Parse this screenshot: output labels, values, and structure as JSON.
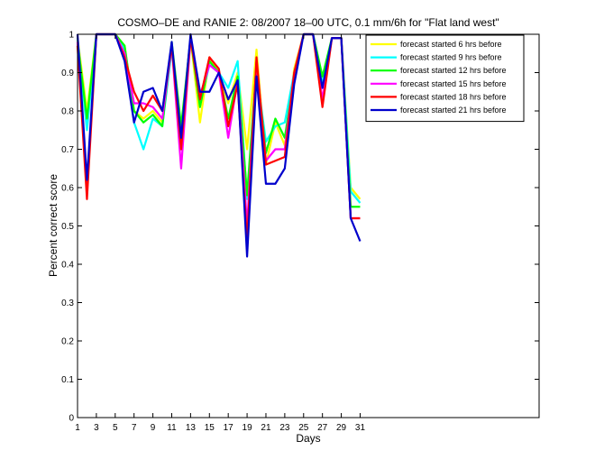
{
  "chart_data": {
    "type": "line",
    "title": "COSMO–DE and RANIE 2: 08/2007 18–00 UTC, 0.1 mm/6h for \"Flat land west\"",
    "xlabel": "Days",
    "ylabel": "Percent correct score",
    "xlim": [
      1,
      50
    ],
    "ylim": [
      0,
      1
    ],
    "xticks": [
      1,
      3,
      5,
      7,
      9,
      11,
      13,
      15,
      17,
      19,
      21,
      23,
      25,
      27,
      29,
      31
    ],
    "yticks": [
      0,
      0.1,
      0.2,
      0.3,
      0.4,
      0.5,
      0.6,
      0.7,
      0.8,
      0.9,
      1
    ],
    "ytick_labels": [
      "0",
      "0.1",
      "0.2",
      "0.3",
      "0.4",
      "0.5",
      "0.6",
      "0.7",
      "0.8",
      "0.9",
      "1"
    ],
    "legend_position": "top-right",
    "grid": false,
    "x": [
      1,
      2,
      3,
      4,
      5,
      6,
      7,
      8,
      9,
      10,
      11,
      12,
      13,
      14,
      15,
      16,
      17,
      18,
      19,
      20,
      21,
      22,
      23,
      24,
      25,
      26,
      27,
      28,
      29,
      30,
      31
    ],
    "series": [
      {
        "name": "forecast started 6 hrs before",
        "color": "#ffff00",
        "values": [
          0.99,
          0.8,
          1.0,
          1.0,
          1.0,
          0.97,
          0.8,
          0.78,
          0.8,
          0.77,
          0.97,
          0.75,
          0.99,
          0.77,
          0.94,
          0.9,
          0.82,
          0.9,
          0.7,
          0.96,
          0.66,
          0.77,
          0.71,
          0.91,
          1.0,
          1.0,
          0.88,
          0.99,
          0.99,
          0.6,
          0.57
        ]
      },
      {
        "name": "forecast started 9 hrs before",
        "color": "#00ffff",
        "values": [
          0.99,
          0.75,
          1.0,
          1.0,
          1.0,
          0.96,
          0.77,
          0.7,
          0.78,
          0.76,
          0.96,
          0.74,
          0.99,
          0.82,
          0.92,
          0.9,
          0.86,
          0.93,
          0.57,
          0.9,
          0.72,
          0.76,
          0.77,
          0.9,
          1.0,
          1.0,
          0.87,
          0.99,
          0.99,
          0.59,
          0.56
        ]
      },
      {
        "name": "forecast started 12 hrs before",
        "color": "#00ff00",
        "values": [
          0.98,
          0.78,
          1.0,
          1.0,
          1.0,
          0.97,
          0.8,
          0.77,
          0.79,
          0.76,
          0.98,
          0.76,
          0.99,
          0.81,
          0.93,
          0.9,
          0.78,
          0.89,
          0.58,
          0.92,
          0.69,
          0.78,
          0.73,
          0.89,
          1.0,
          1.0,
          0.89,
          0.99,
          0.99,
          0.55,
          0.55
        ]
      },
      {
        "name": "forecast started 15 hrs before",
        "color": "#ff00ff",
        "values": [
          0.98,
          0.6,
          1.0,
          1.0,
          1.0,
          0.95,
          0.82,
          0.82,
          0.81,
          0.78,
          0.97,
          0.65,
          0.99,
          0.84,
          0.92,
          0.9,
          0.73,
          0.88,
          0.5,
          0.93,
          0.67,
          0.7,
          0.7,
          0.9,
          1.0,
          1.0,
          0.83,
          0.99,
          0.99,
          0.52,
          0.52
        ]
      },
      {
        "name": "forecast started 18 hrs before",
        "color": "#ff0000",
        "values": [
          0.97,
          0.57,
          1.0,
          1.0,
          1.0,
          0.94,
          0.85,
          0.8,
          0.84,
          0.8,
          0.97,
          0.7,
          0.99,
          0.83,
          0.94,
          0.91,
          0.76,
          0.87,
          0.46,
          0.94,
          0.66,
          0.67,
          0.68,
          0.9,
          1.0,
          1.0,
          0.81,
          0.99,
          0.99,
          0.52,
          0.52
        ]
      },
      {
        "name": "forecast started 21 hrs before",
        "color": "#0000cc",
        "values": [
          1.0,
          0.62,
          1.0,
          1.0,
          1.0,
          0.93,
          0.77,
          0.85,
          0.86,
          0.8,
          0.98,
          0.73,
          1.0,
          0.85,
          0.85,
          0.9,
          0.83,
          0.88,
          0.42,
          0.89,
          0.61,
          0.61,
          0.65,
          0.87,
          1.0,
          1.0,
          0.86,
          0.99,
          0.99,
          0.52,
          0.46
        ]
      }
    ]
  }
}
